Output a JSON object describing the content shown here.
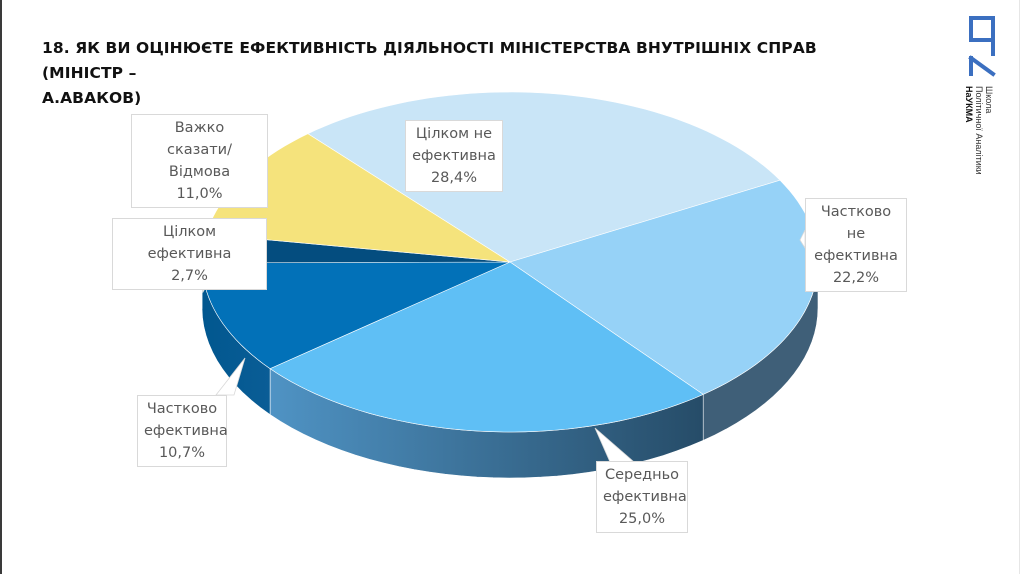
{
  "page": {
    "title": "18. Як ви оцінюєте ефективність діяльності Міністерства внутрішніх справ (Міністр – А.Аваков)",
    "title_line1": "18. ЯК ВИ ОЦІНЮЄТЕ ЕФЕКТИВНІСТЬ ДІЯЛЬНОСТІ МІНІСТЕРСТВА ВНУТРІШНІХ СПРАВ (МІНІСТР –",
    "title_line2": "А.АВАКОВ)"
  },
  "logo": {
    "mark": "ШПА",
    "line1": "Школа",
    "line2": "Політичної Аналітики",
    "line3": "НаУКМА",
    "color": "#3b6fc0"
  },
  "chart_data": {
    "type": "pie",
    "title": "18. Як ви оцінюєте ефективність діяльності Міністерства внутрішніх справ (Міністр – А.Аваков)",
    "style": "3d-exploded-none",
    "unit": "%",
    "categories": [
      "Цілком не ефективна",
      "Частково не ефективна",
      "Середньо ефективна",
      "Частково ефективна",
      "Цілком ефективна",
      "Важко сказати/Відмова"
    ],
    "values": [
      28.4,
      22.2,
      25.0,
      10.7,
      2.7,
      11.0
    ],
    "value_labels": [
      "28,4%",
      "22,2%",
      "25,0%",
      "10,7%",
      "2,7%",
      "11,0%"
    ],
    "colors": [
      "#c9e5f7",
      "#96d2f7",
      "#5fbff5",
      "#0271b8",
      "#044d7f",
      "#f5e37c"
    ],
    "side_colors": [
      "#9fbfd4",
      "#3f5f78",
      "#2b4d69",
      "#01578f",
      "#033a60",
      "#c9b85a"
    ],
    "legend": "none (data callouts)"
  },
  "callouts": [
    {
      "lines": [
        "Цілком не",
        "ефективна",
        "28,4%"
      ]
    },
    {
      "lines": [
        "Частково не",
        "ефективна",
        "22,2%"
      ]
    },
    {
      "lines": [
        "Середньо",
        "ефективна",
        "25,0%"
      ]
    },
    {
      "lines": [
        "Частково",
        "ефективна",
        "10,7%"
      ]
    },
    {
      "lines": [
        "Цілком ефективна",
        "2,7%"
      ]
    },
    {
      "lines": [
        "Важко",
        "сказати/Відмова",
        "11,0%"
      ]
    }
  ]
}
